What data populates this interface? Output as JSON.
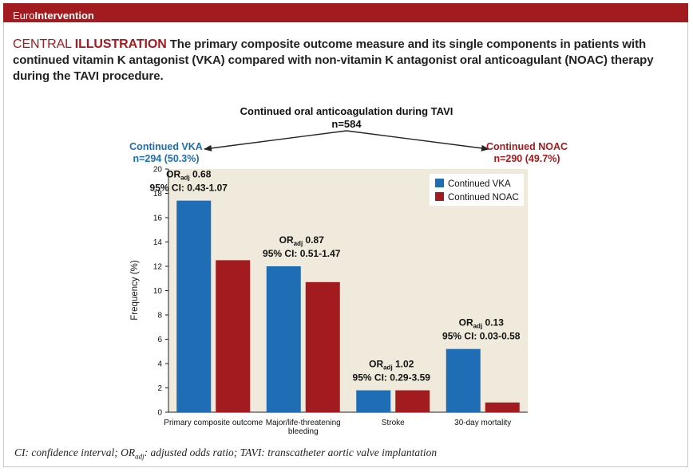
{
  "header": {
    "brand_light": "Euro",
    "brand_bold": "Intervention"
  },
  "heading": {
    "label_light": "CENTRAL ",
    "label_bold": "ILLUSTRATION",
    "text": " The primary composite outcome measure and its single components in patients with continued vitamin K antagonist (VKA) compared with non-vitamin K antagonist oral anticoagulant (NOAC) therapy during the TAVI procedure."
  },
  "flow": {
    "title": "Continued oral anticoagulation during TAVI",
    "total": "n=584",
    "left_label": "Continued VKA",
    "left_n": "n=294 (50.3%)",
    "right_label": "Continued NOAC",
    "right_n": "n=290 (49.7%)"
  },
  "colors": {
    "vka": "#1f6db4",
    "noac": "#a21c1f",
    "plot_bg": "#efeadb",
    "brand": "#a21c1f"
  },
  "chart_data": {
    "type": "bar",
    "categories": [
      "Primary composite outcome",
      "Major/life-threatening bleeding",
      "Stroke",
      "30-day mortality"
    ],
    "category_lines": [
      [
        "Primary composite outcome"
      ],
      [
        "Major/life-threatening",
        "bleeding"
      ],
      [
        "Stroke"
      ],
      [
        "30-day mortality"
      ]
    ],
    "series": [
      {
        "name": "Continued VKA",
        "values": [
          17.4,
          12.0,
          1.8,
          5.2
        ]
      },
      {
        "name": "Continued NOAC",
        "values": [
          12.5,
          10.7,
          1.8,
          0.8
        ]
      }
    ],
    "ylabel": "Frequency (%)",
    "ylim": [
      0,
      20
    ],
    "yticks": [
      0,
      2,
      4,
      6,
      8,
      10,
      12,
      14,
      16,
      18,
      20
    ],
    "legend_position": "top-right",
    "annotations": [
      {
        "or_prefix": "OR",
        "or_sub": "adj",
        "or_value": " 0.68",
        "ci": "95% CI: 0.43-1.07"
      },
      {
        "or_prefix": "OR",
        "or_sub": "adj",
        "or_value": " 0.87",
        "ci": "95% CI: 0.51-1.47"
      },
      {
        "or_prefix": "OR",
        "or_sub": "adj",
        "or_value": " 1.02",
        "ci": "95% CI: 0.29-3.59"
      },
      {
        "or_prefix": "OR",
        "or_sub": "adj",
        "or_value": " 0.13",
        "ci": "95% CI: 0.03-0.58"
      }
    ]
  },
  "footnote": {
    "part1": "CI: confidence interval; OR",
    "sub": "adj",
    "part2": ": adjusted odds ratio; TAVI: transcatheter aortic valve implantation"
  }
}
